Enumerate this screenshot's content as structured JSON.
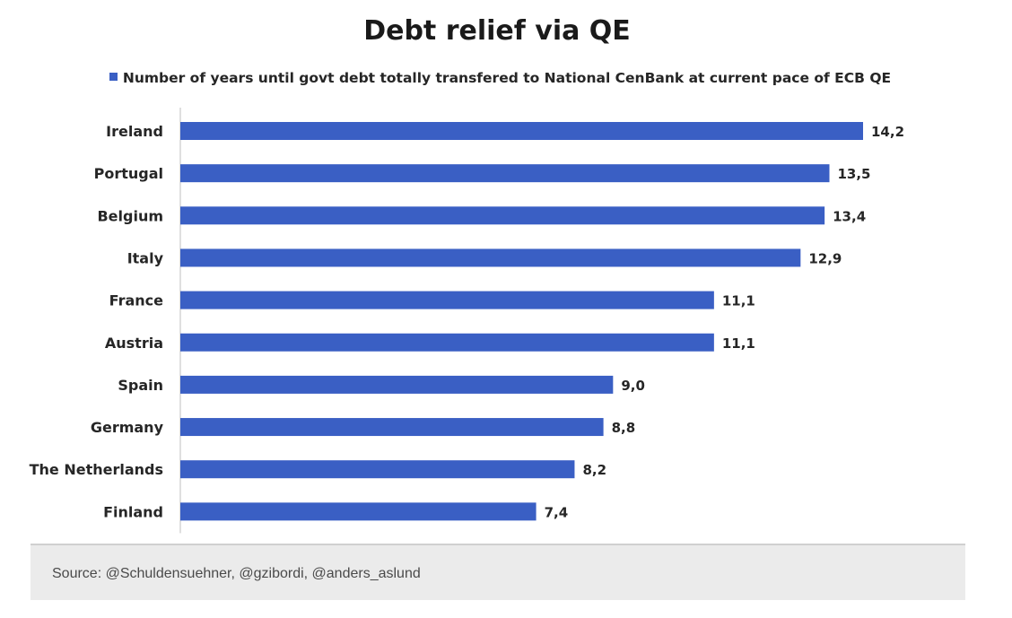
{
  "chart_data": {
    "type": "bar",
    "orientation": "horizontal",
    "title": "Debt relief via QE",
    "legend": {
      "position": "top",
      "series_name": "Number of years until govt debt totally transfered to National CenBank at current pace of ECB QE"
    },
    "categories": [
      "Ireland",
      "Portugal",
      "Belgium",
      "Italy",
      "France",
      "Austria",
      "Spain",
      "Germany",
      "The Netherlands",
      "Finland"
    ],
    "values": [
      14.2,
      13.5,
      13.4,
      12.9,
      11.1,
      11.1,
      9.0,
      8.8,
      8.2,
      7.4
    ],
    "value_labels": [
      "14,2",
      "13,5",
      "13,4",
      "12,9",
      "11,1",
      "11,1",
      "9,0",
      "8,8",
      "8,2",
      "7,4"
    ],
    "xlim": [
      0,
      14.2
    ],
    "grid": false,
    "xlabel": "",
    "ylabel": "",
    "bar_color": "#3a5fc4"
  },
  "footer": {
    "source": "Source: @Schuldensuehner, @gzibordi, @anders_aslund"
  }
}
